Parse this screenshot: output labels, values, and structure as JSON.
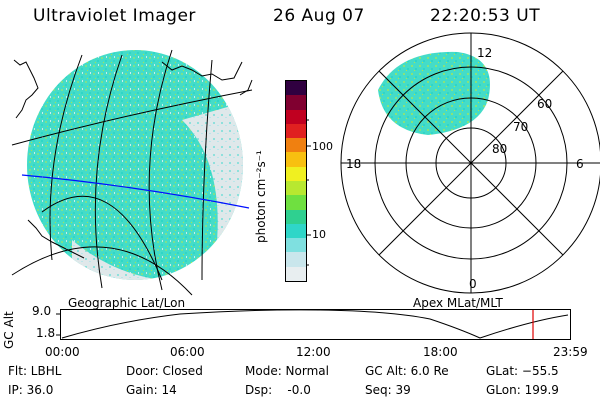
{
  "header": {
    "instrument": "Ultraviolet Imager",
    "date": "26 Aug 07",
    "time": "22:20:53 UT"
  },
  "colorbar": {
    "unit_label": "photon cm⁻²s⁻¹",
    "ticks": [
      "100",
      "10"
    ],
    "colors": [
      "#e8eef0",
      "#c9e6ec",
      "#7fe0e0",
      "#2fd6c8",
      "#2fd090",
      "#6fe040",
      "#b8e830",
      "#f0f020",
      "#f8c010",
      "#f08010",
      "#e02020",
      "#c00020",
      "#800030",
      "#300040"
    ]
  },
  "geo_map": {
    "caption": "Geographic Lat/Lon"
  },
  "polar_map": {
    "caption": "Apex MLat/MLT",
    "mlt_labels": {
      "top": "12",
      "left": "18",
      "right": "6",
      "bottom": "0"
    },
    "lat_labels": [
      "60",
      "70",
      "80"
    ]
  },
  "altitude_plot": {
    "ylabel": "GC Alt",
    "yticks": [
      "9.0",
      "1.8"
    ],
    "xticks": [
      "00:00",
      "06:00",
      "12:00",
      "18:00",
      "23:59"
    ]
  },
  "status": {
    "flt": "Flt: LBHL",
    "ip": "IP: 36.0",
    "door": "Door: Closed",
    "gain": "Gain: 14",
    "mode": "Mode: Normal",
    "dsp": "Dsp:    -0.0",
    "gcalt": "GC Alt: 6.0 Re",
    "seq": "Seq: 39",
    "glat": "GLat: −55.5",
    "glon": "GLon: 199.9"
  }
}
